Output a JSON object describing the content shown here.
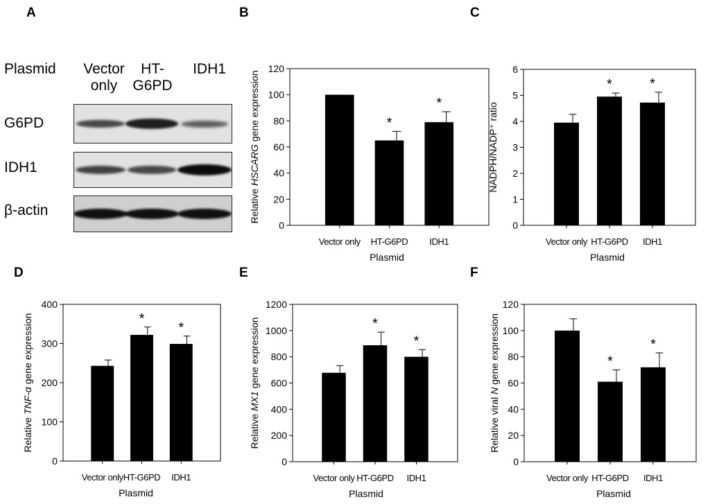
{
  "panel_labels": [
    "A",
    "B",
    "C",
    "D",
    "E",
    "F"
  ],
  "blot": {
    "header_label": "Plasmid",
    "columns": [
      {
        "line1": "Vector",
        "line2": "only"
      },
      {
        "line1": "HT-",
        "line2": "G6PD"
      },
      {
        "line1": "IDH1",
        "line2": ""
      }
    ],
    "rows": [
      "G6PD",
      "IDH1",
      "β-actin"
    ],
    "band_intensity": [
      [
        0.55,
        0.85,
        0.4
      ],
      [
        0.6,
        0.55,
        1.0
      ],
      [
        0.95,
        0.95,
        0.95
      ]
    ]
  },
  "chart_data": [
    {
      "type": "bar",
      "panel": "B",
      "categories": [
        "Vector only",
        "HT-G6PD",
        "IDH1"
      ],
      "values": [
        100,
        65,
        79
      ],
      "errors": [
        0,
        7,
        8
      ],
      "significance": [
        "",
        "*",
        "*"
      ],
      "xlabel": "Plasmid",
      "ylabel_parts": [
        {
          "t": "Relative ",
          "i": false
        },
        {
          "t": "HSCARG",
          "i": true
        },
        {
          "t": " gene expression",
          "i": false
        }
      ],
      "ylim": [
        0,
        120
      ],
      "yticks": [
        0,
        20,
        40,
        60,
        80,
        100,
        120
      ],
      "bar_color": "#000000"
    },
    {
      "type": "bar",
      "panel": "C",
      "categories": [
        "Vector only",
        "HT-G6PD",
        "IDH1"
      ],
      "values": [
        3.95,
        4.95,
        4.72
      ],
      "errors": [
        0.32,
        0.14,
        0.4
      ],
      "significance": [
        "",
        "*",
        "*"
      ],
      "xlabel": "Plasmid",
      "ylabel_parts": [
        {
          "t": "NADPH/NADP⁺ ratio",
          "i": false
        }
      ],
      "ylim": [
        0,
        6
      ],
      "yticks": [
        0,
        1,
        2,
        3,
        4,
        5,
        6
      ],
      "bar_color": "#000000"
    },
    {
      "type": "bar",
      "panel": "D",
      "categories": [
        "Vector only",
        "HT-G6PD",
        "IDH1"
      ],
      "values": [
        243,
        322,
        299
      ],
      "errors": [
        15,
        20,
        20
      ],
      "significance": [
        "",
        "*",
        "*"
      ],
      "xlabel": "Plasmid",
      "ylabel_parts": [
        {
          "t": "Relative ",
          "i": false
        },
        {
          "t": "TNF-α",
          "i": true
        },
        {
          "t": " gene expression",
          "i": false
        }
      ],
      "ylim": [
        0,
        400
      ],
      "yticks": [
        0,
        100,
        200,
        300,
        400
      ],
      "bar_color": "#000000"
    },
    {
      "type": "bar",
      "panel": "E",
      "categories": [
        "Vector only",
        "HT-G6PD",
        "IDH1"
      ],
      "values": [
        678,
        888,
        800
      ],
      "errors": [
        55,
        100,
        55
      ],
      "significance": [
        "",
        "*",
        "*"
      ],
      "xlabel": "Plasmid",
      "ylabel_parts": [
        {
          "t": "Relative ",
          "i": false
        },
        {
          "t": "MX1",
          "i": true
        },
        {
          "t": " gene expression",
          "i": false
        }
      ],
      "ylim": [
        0,
        1200
      ],
      "yticks": [
        0,
        200,
        400,
        600,
        800,
        1000,
        1200
      ],
      "bar_color": "#000000"
    },
    {
      "type": "bar",
      "panel": "F",
      "categories": [
        "Vector only",
        "HT-G6PD",
        "IDH1"
      ],
      "values": [
        100,
        61,
        72
      ],
      "errors": [
        9,
        9,
        11
      ],
      "significance": [
        "",
        "*",
        "*"
      ],
      "xlabel": "Plasmid",
      "ylabel_parts": [
        {
          "t": "Relative viral ",
          "i": false
        },
        {
          "t": "N",
          "i": true
        },
        {
          "t": " gene expression",
          "i": false
        }
      ],
      "ylim": [
        0,
        120
      ],
      "yticks": [
        0,
        20,
        40,
        60,
        80,
        100,
        120
      ],
      "bar_color": "#000000"
    }
  ]
}
